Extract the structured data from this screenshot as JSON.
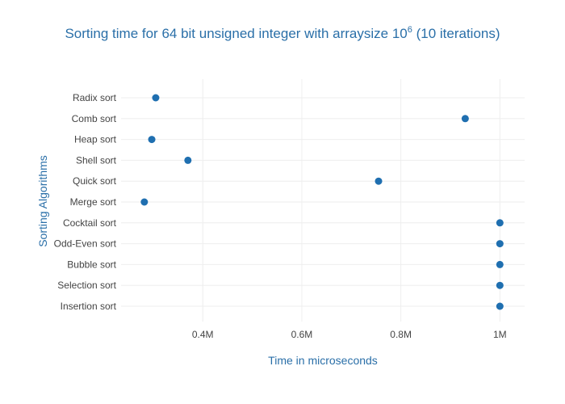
{
  "chart_data": {
    "type": "scatter",
    "title": "Sorting time for 64 bit unsigned integer with arraysize 10",
    "title_superscript": "6",
    "title_suffix": " (10 iterations)",
    "xlabel": "Time in microseconds",
    "ylabel": "Sorting Algorithms",
    "xlim": [
      235000,
      1050000
    ],
    "x_ticks": [
      400000,
      600000,
      800000,
      1000000
    ],
    "x_tick_labels": [
      "0.4M",
      "0.6M",
      "0.8M",
      "1M"
    ],
    "categories": [
      "Radix sort",
      "Comb sort",
      "Heap sort",
      "Shell sort",
      "Quick sort",
      "Merge sort",
      "Cocktail sort",
      "Odd-Even sort",
      "Bubble sort",
      "Selection sort",
      "Insertion sort"
    ],
    "values": [
      305000,
      930000,
      297000,
      370000,
      755000,
      282000,
      1000000,
      1000000,
      1000000,
      1000000,
      1000000
    ],
    "grid": true,
    "colors": {
      "marker": "#1f6fb0",
      "text": "#444444",
      "accent": "#2a6fa8",
      "grid": "#eeeeee"
    }
  }
}
